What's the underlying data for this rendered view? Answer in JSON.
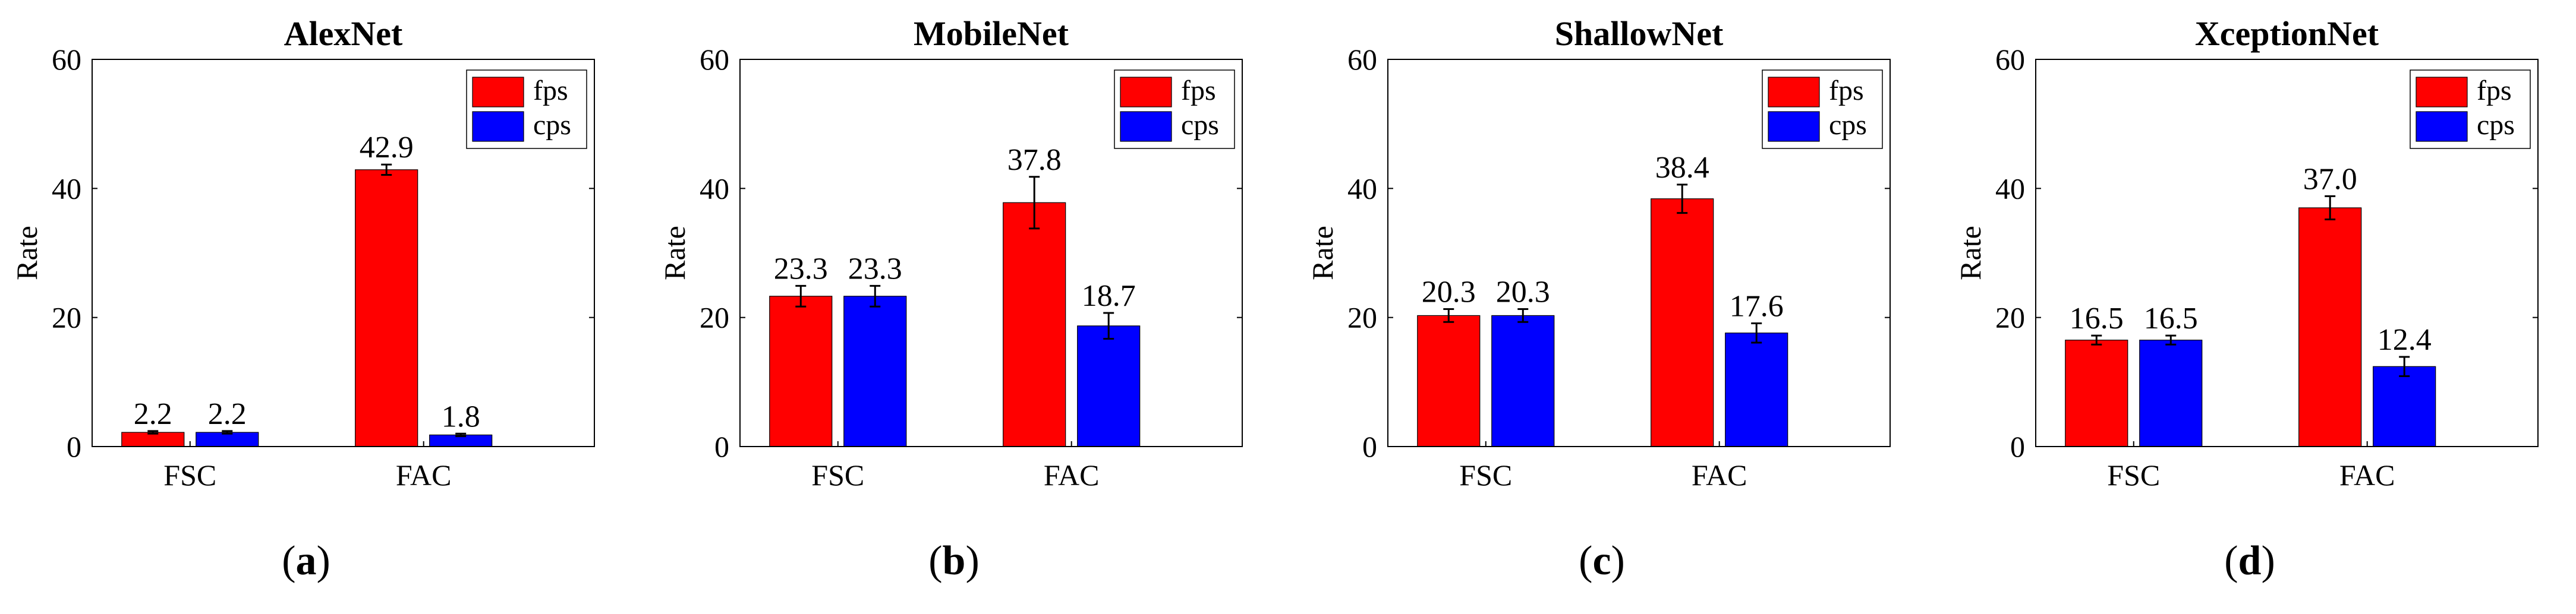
{
  "colors": {
    "fps": "#ff0000",
    "cps": "#0000ff",
    "axis": "#000000"
  },
  "chart_data": [
    {
      "type": "bar",
      "title": "AlexNet",
      "ylabel": "Rate",
      "xlabel": "",
      "ylim": [
        0,
        60
      ],
      "yticks": [
        "0",
        "20",
        "40",
        "60"
      ],
      "legend": {
        "position": "top-right",
        "entries": [
          "fps",
          "cps"
        ]
      },
      "categories": [
        "FSC",
        "FAC"
      ],
      "series": [
        {
          "name": "fps",
          "values": [
            2.2,
            42.9
          ],
          "labels": [
            "2.2",
            "42.9"
          ],
          "errors": [
            0.2,
            0.8
          ]
        },
        {
          "name": "cps",
          "values": [
            2.2,
            1.8
          ],
          "labels": [
            "2.2",
            "1.8"
          ],
          "errors": [
            0.2,
            0.2
          ]
        }
      ],
      "caption_letter": "a"
    },
    {
      "type": "bar",
      "title": "MobileNet",
      "ylabel": "Rate",
      "xlabel": "",
      "ylim": [
        0,
        60
      ],
      "yticks": [
        "0",
        "20",
        "40",
        "60"
      ],
      "legend": {
        "position": "top-right",
        "entries": [
          "fps",
          "cps"
        ]
      },
      "categories": [
        "FSC",
        "FAC"
      ],
      "series": [
        {
          "name": "fps",
          "values": [
            23.3,
            37.8
          ],
          "labels": [
            "23.3",
            "37.8"
          ],
          "errors": [
            1.6,
            4.0
          ]
        },
        {
          "name": "cps",
          "values": [
            23.3,
            18.7
          ],
          "labels": [
            "23.3",
            "18.7"
          ],
          "errors": [
            1.6,
            2.0
          ]
        }
      ],
      "caption_letter": "b"
    },
    {
      "type": "bar",
      "title": "ShallowNet",
      "ylabel": "Rate",
      "xlabel": "",
      "ylim": [
        0,
        60
      ],
      "yticks": [
        "0",
        "20",
        "40",
        "60"
      ],
      "legend": {
        "position": "top-right",
        "entries": [
          "fps",
          "cps"
        ]
      },
      "categories": [
        "FSC",
        "FAC"
      ],
      "series": [
        {
          "name": "fps",
          "values": [
            20.3,
            38.4
          ],
          "labels": [
            "20.3",
            "38.4"
          ],
          "errors": [
            1.0,
            2.2
          ]
        },
        {
          "name": "cps",
          "values": [
            20.3,
            17.6
          ],
          "labels": [
            "20.3",
            "17.6"
          ],
          "errors": [
            1.0,
            1.5
          ]
        }
      ],
      "caption_letter": "c"
    },
    {
      "type": "bar",
      "title": "XceptionNet",
      "ylabel": "Rate",
      "xlabel": "",
      "ylim": [
        0,
        60
      ],
      "yticks": [
        "0",
        "20",
        "40",
        "60"
      ],
      "legend": {
        "position": "top-right",
        "entries": [
          "fps",
          "cps"
        ]
      },
      "categories": [
        "FSC",
        "FAC"
      ],
      "series": [
        {
          "name": "fps",
          "values": [
            16.5,
            37.0
          ],
          "labels": [
            "16.5",
            "37.0"
          ],
          "errors": [
            0.7,
            1.8
          ]
        },
        {
          "name": "cps",
          "values": [
            16.5,
            12.4
          ],
          "labels": [
            "16.5",
            "12.4"
          ],
          "errors": [
            0.7,
            1.5
          ]
        }
      ],
      "caption_letter": "d"
    }
  ]
}
